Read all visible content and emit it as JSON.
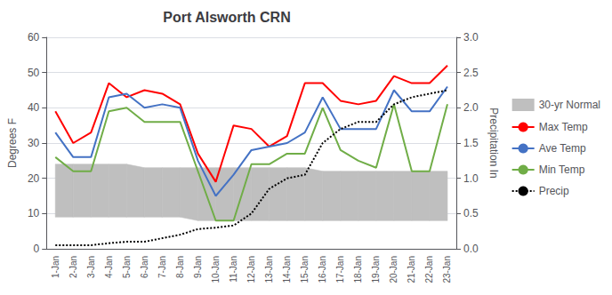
{
  "chart_data": {
    "type": "line",
    "title": "Port Alsworth CRN",
    "categories": [
      "1-Jan",
      "2-Jan",
      "3-Jan",
      "4-Jan",
      "5-Jan",
      "6-Jan",
      "7-Jan",
      "8-Jan",
      "9-Jan",
      "10-Jan",
      "11-Jan",
      "12-Jan",
      "13-Jan",
      "14-Jan",
      "15-Jan",
      "16-Jan",
      "17-Jan",
      "18-Jan",
      "19-Jan",
      "20-Jan",
      "21-Jan",
      "22-Jan",
      "23-Jan"
    ],
    "series": [
      {
        "name": "30-yr Normal",
        "type": "band",
        "color": "#BFBFBF",
        "lower": [
          9,
          9,
          9,
          9,
          9,
          9,
          9,
          9,
          8,
          8,
          8,
          8,
          8,
          8,
          8,
          8,
          8,
          8,
          8,
          8,
          8,
          8,
          8
        ],
        "upper": [
          24,
          24,
          24,
          24,
          24,
          23,
          23,
          23,
          23,
          23,
          23,
          23,
          23,
          23,
          23,
          22,
          22,
          22,
          22,
          22,
          22,
          22,
          22
        ]
      },
      {
        "name": "Max Temp",
        "type": "line",
        "color": "#FF0000",
        "line_style": "solid",
        "values": [
          39,
          30,
          33,
          47,
          43,
          45,
          44,
          41,
          27,
          19,
          35,
          34,
          29,
          32,
          47,
          47,
          42,
          41,
          42,
          49,
          47,
          47,
          52
        ]
      },
      {
        "name": "Ave Temp",
        "type": "line",
        "color": "#4472C4",
        "line_style": "solid",
        "values": [
          33,
          26,
          26,
          43,
          44,
          40,
          41,
          40,
          25,
          15,
          21,
          28,
          29,
          30,
          33,
          43,
          34,
          34,
          34,
          45,
          39,
          39,
          46
        ]
      },
      {
        "name": "Min Temp",
        "type": "line",
        "color": "#70AD47",
        "line_style": "solid",
        "values": [
          26,
          22,
          22,
          39,
          40,
          36,
          36,
          36,
          22,
          8,
          8,
          24,
          24,
          27,
          27,
          40,
          28,
          25,
          23,
          41,
          22,
          22,
          41
        ]
      },
      {
        "name": "Precip",
        "type": "line",
        "color": "#000000",
        "line_style": "dotted",
        "axis": "y2",
        "values": [
          0.05,
          0.05,
          0.05,
          0.08,
          0.1,
          0.1,
          0.15,
          0.2,
          0.28,
          0.3,
          0.33,
          0.5,
          0.85,
          1.0,
          1.05,
          1.5,
          1.7,
          1.8,
          1.8,
          2.05,
          2.15,
          2.2,
          2.25
        ]
      }
    ],
    "ylabel": "Degrees F",
    "y2label": "Precipitation In",
    "ylim": [
      0,
      60
    ],
    "yticks": [
      0,
      10,
      20,
      30,
      40,
      50,
      60
    ],
    "y2lim": [
      0,
      3
    ],
    "y2ticks": [
      {
        "value": 0,
        "label": "0.0"
      },
      0.5,
      {
        "value": 1,
        "label": "1.0"
      },
      1.5,
      {
        "value": 2,
        "label": "2.0"
      },
      2.5,
      {
        "value": 3,
        "label": "3.0"
      }
    ],
    "grid": true,
    "legend": "right"
  }
}
